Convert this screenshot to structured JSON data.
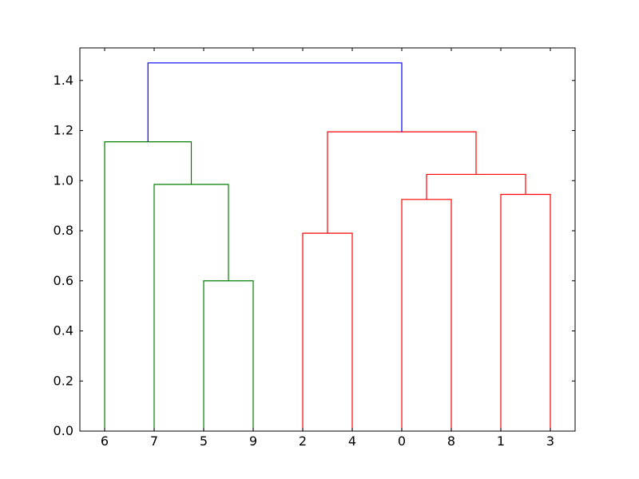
{
  "chart_data": {
    "type": "dendrogram",
    "leaf_order": [
      "6",
      "7",
      "5",
      "9",
      "2",
      "4",
      "0",
      "8",
      "1",
      "3"
    ],
    "ylim": [
      0,
      1.53
    ],
    "y_ticks": [
      "0.0",
      "0.2",
      "0.4",
      "0.6",
      "0.8",
      "1.0",
      "1.2",
      "1.4"
    ],
    "y_tick_values": [
      0.0,
      0.2,
      0.4,
      0.6,
      0.8,
      1.0,
      1.2,
      1.4
    ],
    "grid": false,
    "title": "",
    "xlabel": "",
    "ylabel": "",
    "cluster_colors": {
      "green": "#008000",
      "red": "#ff0000",
      "blue": "#0000ff"
    },
    "merges": [
      {
        "id": "c59",
        "children": [
          "5",
          "9"
        ],
        "height": 0.6,
        "color": "#008000"
      },
      {
        "id": "c7_59",
        "children": [
          "7",
          "c59"
        ],
        "height": 0.985,
        "color": "#008000"
      },
      {
        "id": "c6_759",
        "children": [
          "6",
          "c7_59"
        ],
        "height": 1.155,
        "color": "#008000"
      },
      {
        "id": "c24",
        "children": [
          "2",
          "4"
        ],
        "height": 0.79,
        "color": "#ff0000"
      },
      {
        "id": "c08",
        "children": [
          "0",
          "8"
        ],
        "height": 0.925,
        "color": "#ff0000"
      },
      {
        "id": "c13",
        "children": [
          "1",
          "3"
        ],
        "height": 0.945,
        "color": "#ff0000"
      },
      {
        "id": "c0813",
        "children": [
          "c08",
          "c13"
        ],
        "height": 1.025,
        "color": "#ff0000"
      },
      {
        "id": "cred",
        "children": [
          "c24",
          "c0813"
        ],
        "height": 1.195,
        "color": "#ff0000"
      },
      {
        "id": "root",
        "children": [
          "c6_759",
          "cred"
        ],
        "height": 1.47,
        "color": "#0000ff"
      }
    ]
  }
}
